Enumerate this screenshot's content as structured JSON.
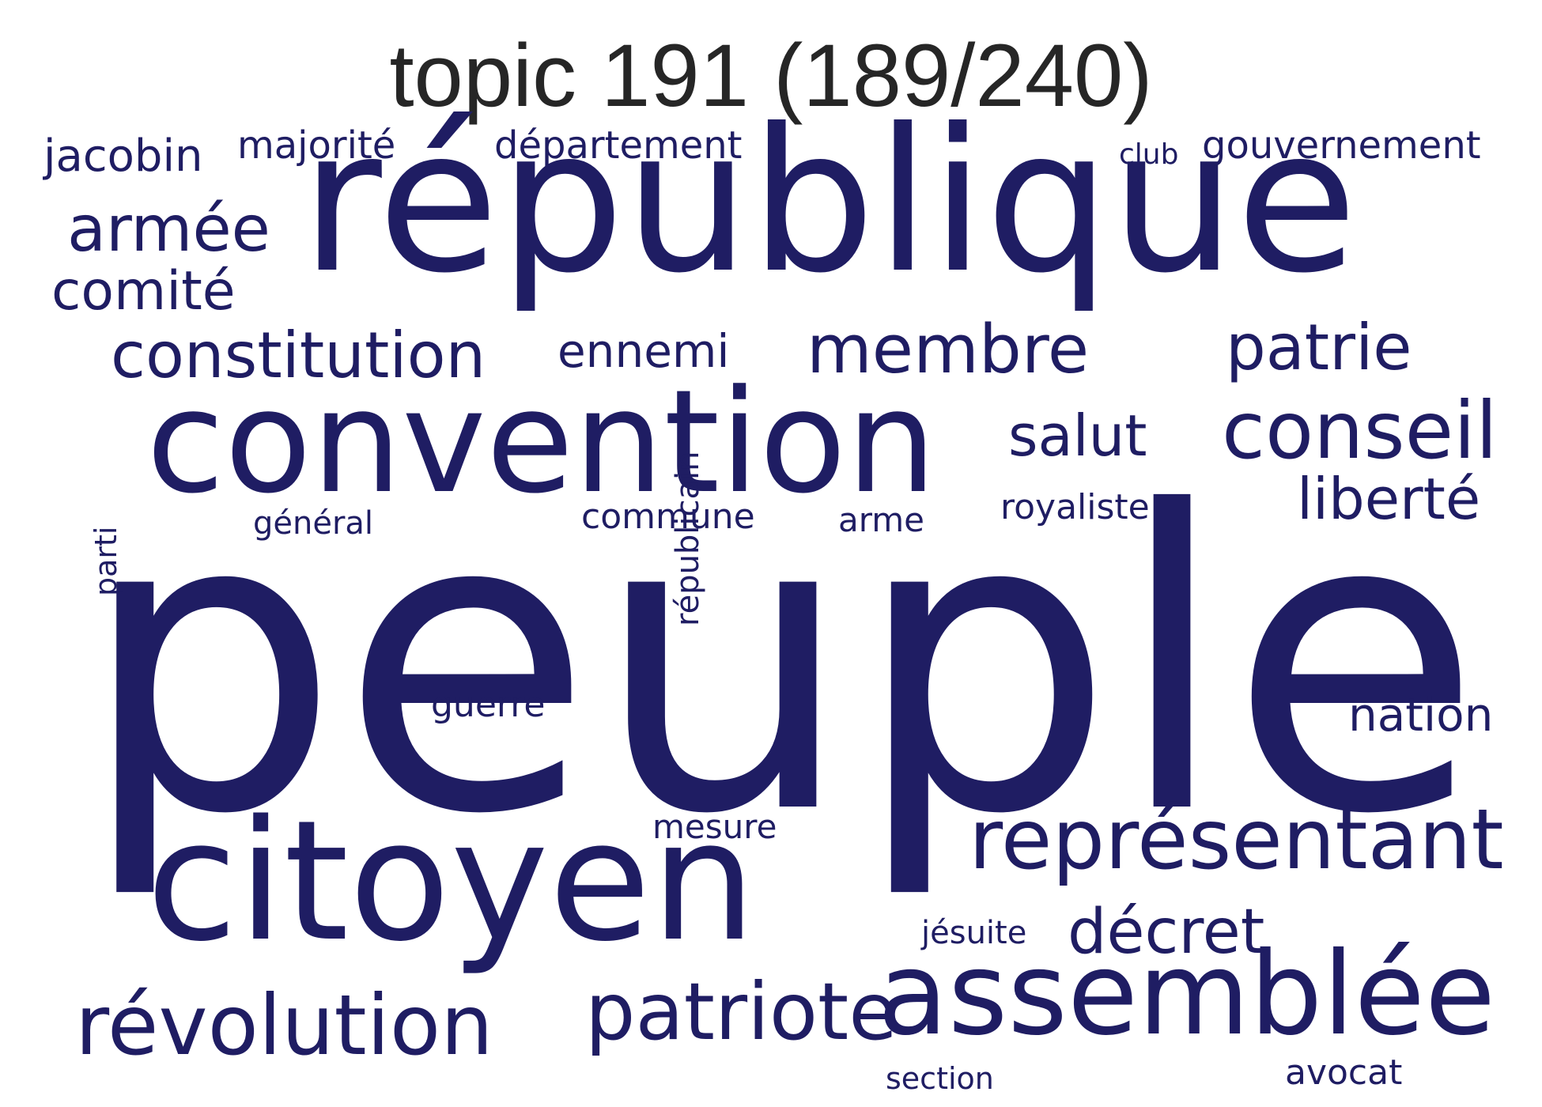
{
  "title": "topic 191 (189/240)",
  "color": "#1f1d63",
  "words": [
    {
      "text": "peuple",
      "weight": 100
    },
    {
      "text": "république",
      "weight": 62
    },
    {
      "text": "citoyen",
      "weight": 44
    },
    {
      "text": "convention",
      "weight": 40
    },
    {
      "text": "assemblée",
      "weight": 34
    },
    {
      "text": "représentant",
      "weight": 24
    },
    {
      "text": "révolution",
      "weight": 24
    },
    {
      "text": "patriote",
      "weight": 22
    },
    {
      "text": "conseil",
      "weight": 21
    },
    {
      "text": "membre",
      "weight": 19
    },
    {
      "text": "constitution",
      "weight": 19
    },
    {
      "text": "armée",
      "weight": 18
    },
    {
      "text": "patrie",
      "weight": 18
    },
    {
      "text": "décret",
      "weight": 16
    },
    {
      "text": "liberté",
      "weight": 15
    },
    {
      "text": "comité",
      "weight": 15
    },
    {
      "text": "salut",
      "weight": 15
    },
    {
      "text": "nation",
      "weight": 13
    },
    {
      "text": "ennemi",
      "weight": 12
    },
    {
      "text": "jacobin",
      "weight": 11
    },
    {
      "text": "gouvernement",
      "weight": 10
    },
    {
      "text": "département",
      "weight": 10
    },
    {
      "text": "majorité",
      "weight": 10
    },
    {
      "text": "royaliste",
      "weight": 9
    },
    {
      "text": "commune",
      "weight": 9
    },
    {
      "text": "guerre",
      "weight": 9
    },
    {
      "text": "avocat",
      "weight": 9
    },
    {
      "text": "mesure",
      "weight": 9
    },
    {
      "text": "républicain",
      "weight": 8
    },
    {
      "text": "arme",
      "weight": 8
    },
    {
      "text": "jésuite",
      "weight": 8
    },
    {
      "text": "section",
      "weight": 8
    },
    {
      "text": "général",
      "weight": 7
    },
    {
      "text": "club",
      "weight": 7
    },
    {
      "text": "parti",
      "weight": 7
    }
  ]
}
